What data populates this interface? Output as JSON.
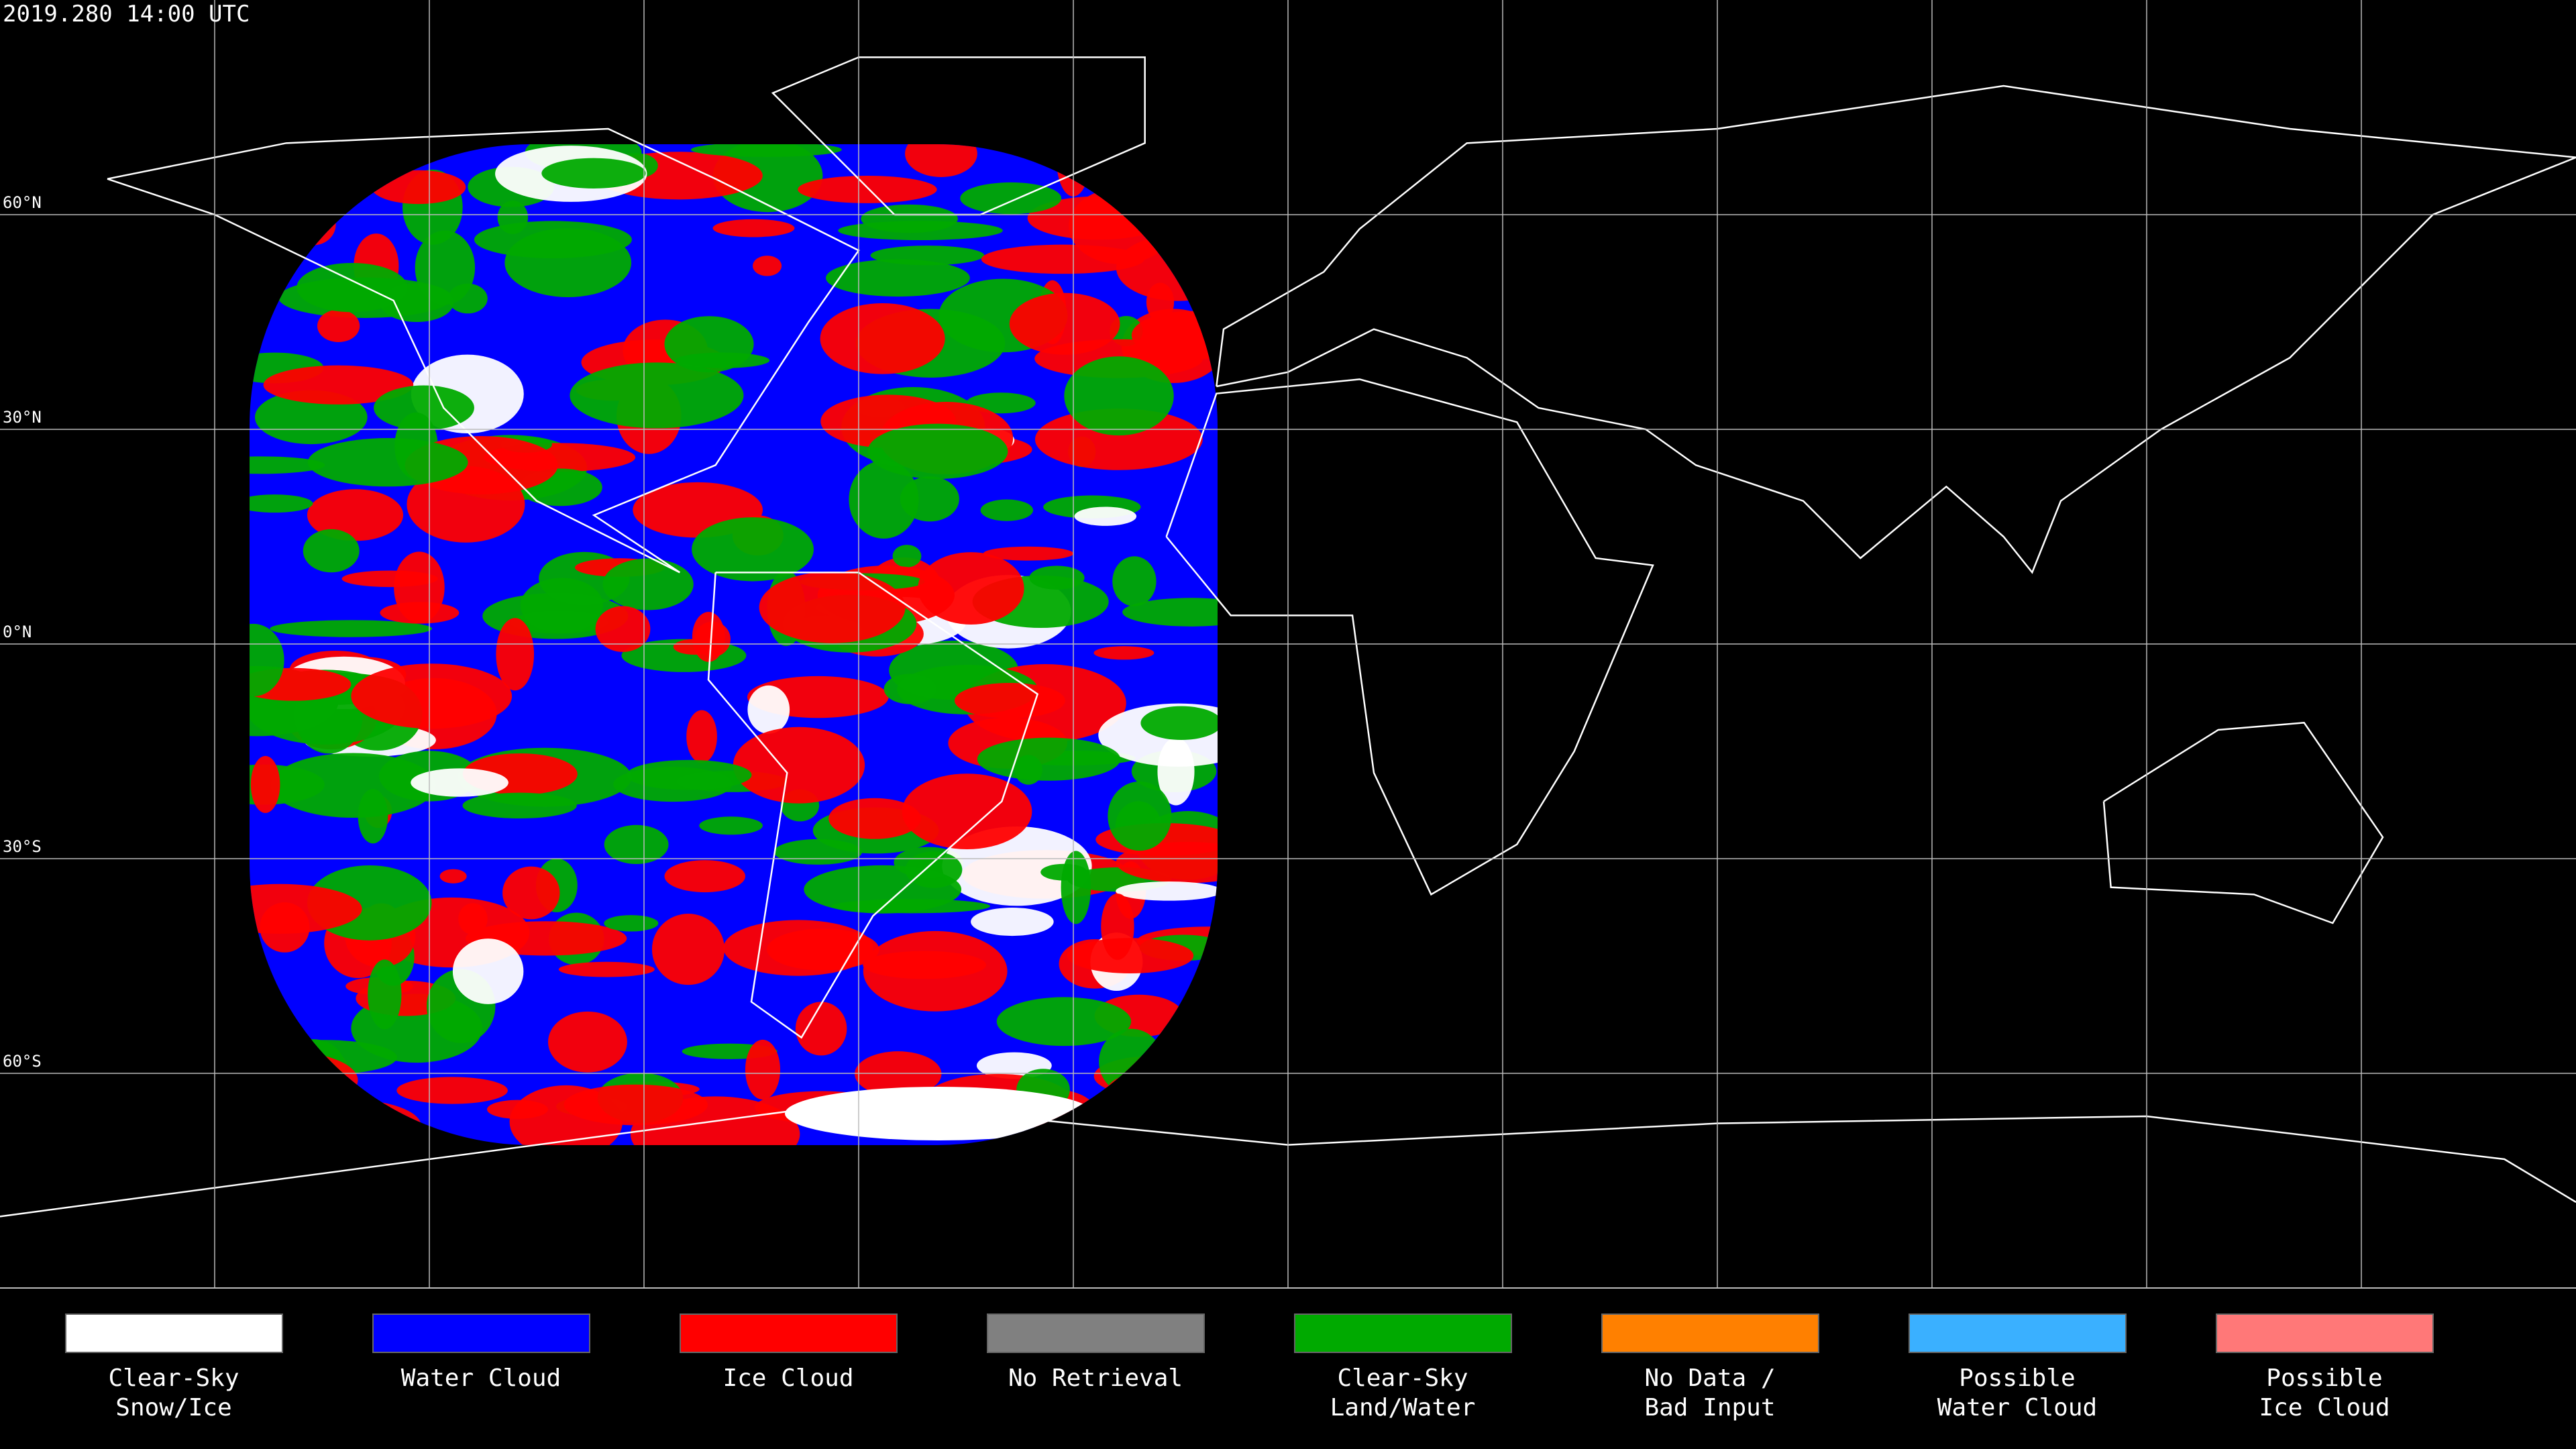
{
  "header": {
    "timestamp": "2019.280 14:00 UTC"
  },
  "map": {
    "latitude_labels": [
      "60°N",
      "30°N",
      "0°N",
      "30°S",
      "60°S"
    ]
  },
  "legend": {
    "items": [
      {
        "lines": [
          "Clear-Sky",
          "Snow/Ice"
        ],
        "color": "#ffffff"
      },
      {
        "lines": [
          "Water Cloud"
        ],
        "color": "#0000ff"
      },
      {
        "lines": [
          "Ice Cloud"
        ],
        "color": "#ff0000"
      },
      {
        "lines": [
          "No Retrieval"
        ],
        "color": "#808080"
      },
      {
        "lines": [
          "Clear-Sky",
          "Land/Water"
        ],
        "color": "#00aa00"
      },
      {
        "lines": [
          "No Data /",
          "Bad Input"
        ],
        "color": "#ff8000"
      },
      {
        "lines": [
          "Possible",
          "Water Cloud"
        ],
        "color": "#3ab0ff"
      },
      {
        "lines": [
          "Possible",
          "Ice Cloud"
        ],
        "color": "#ff7878"
      }
    ]
  }
}
